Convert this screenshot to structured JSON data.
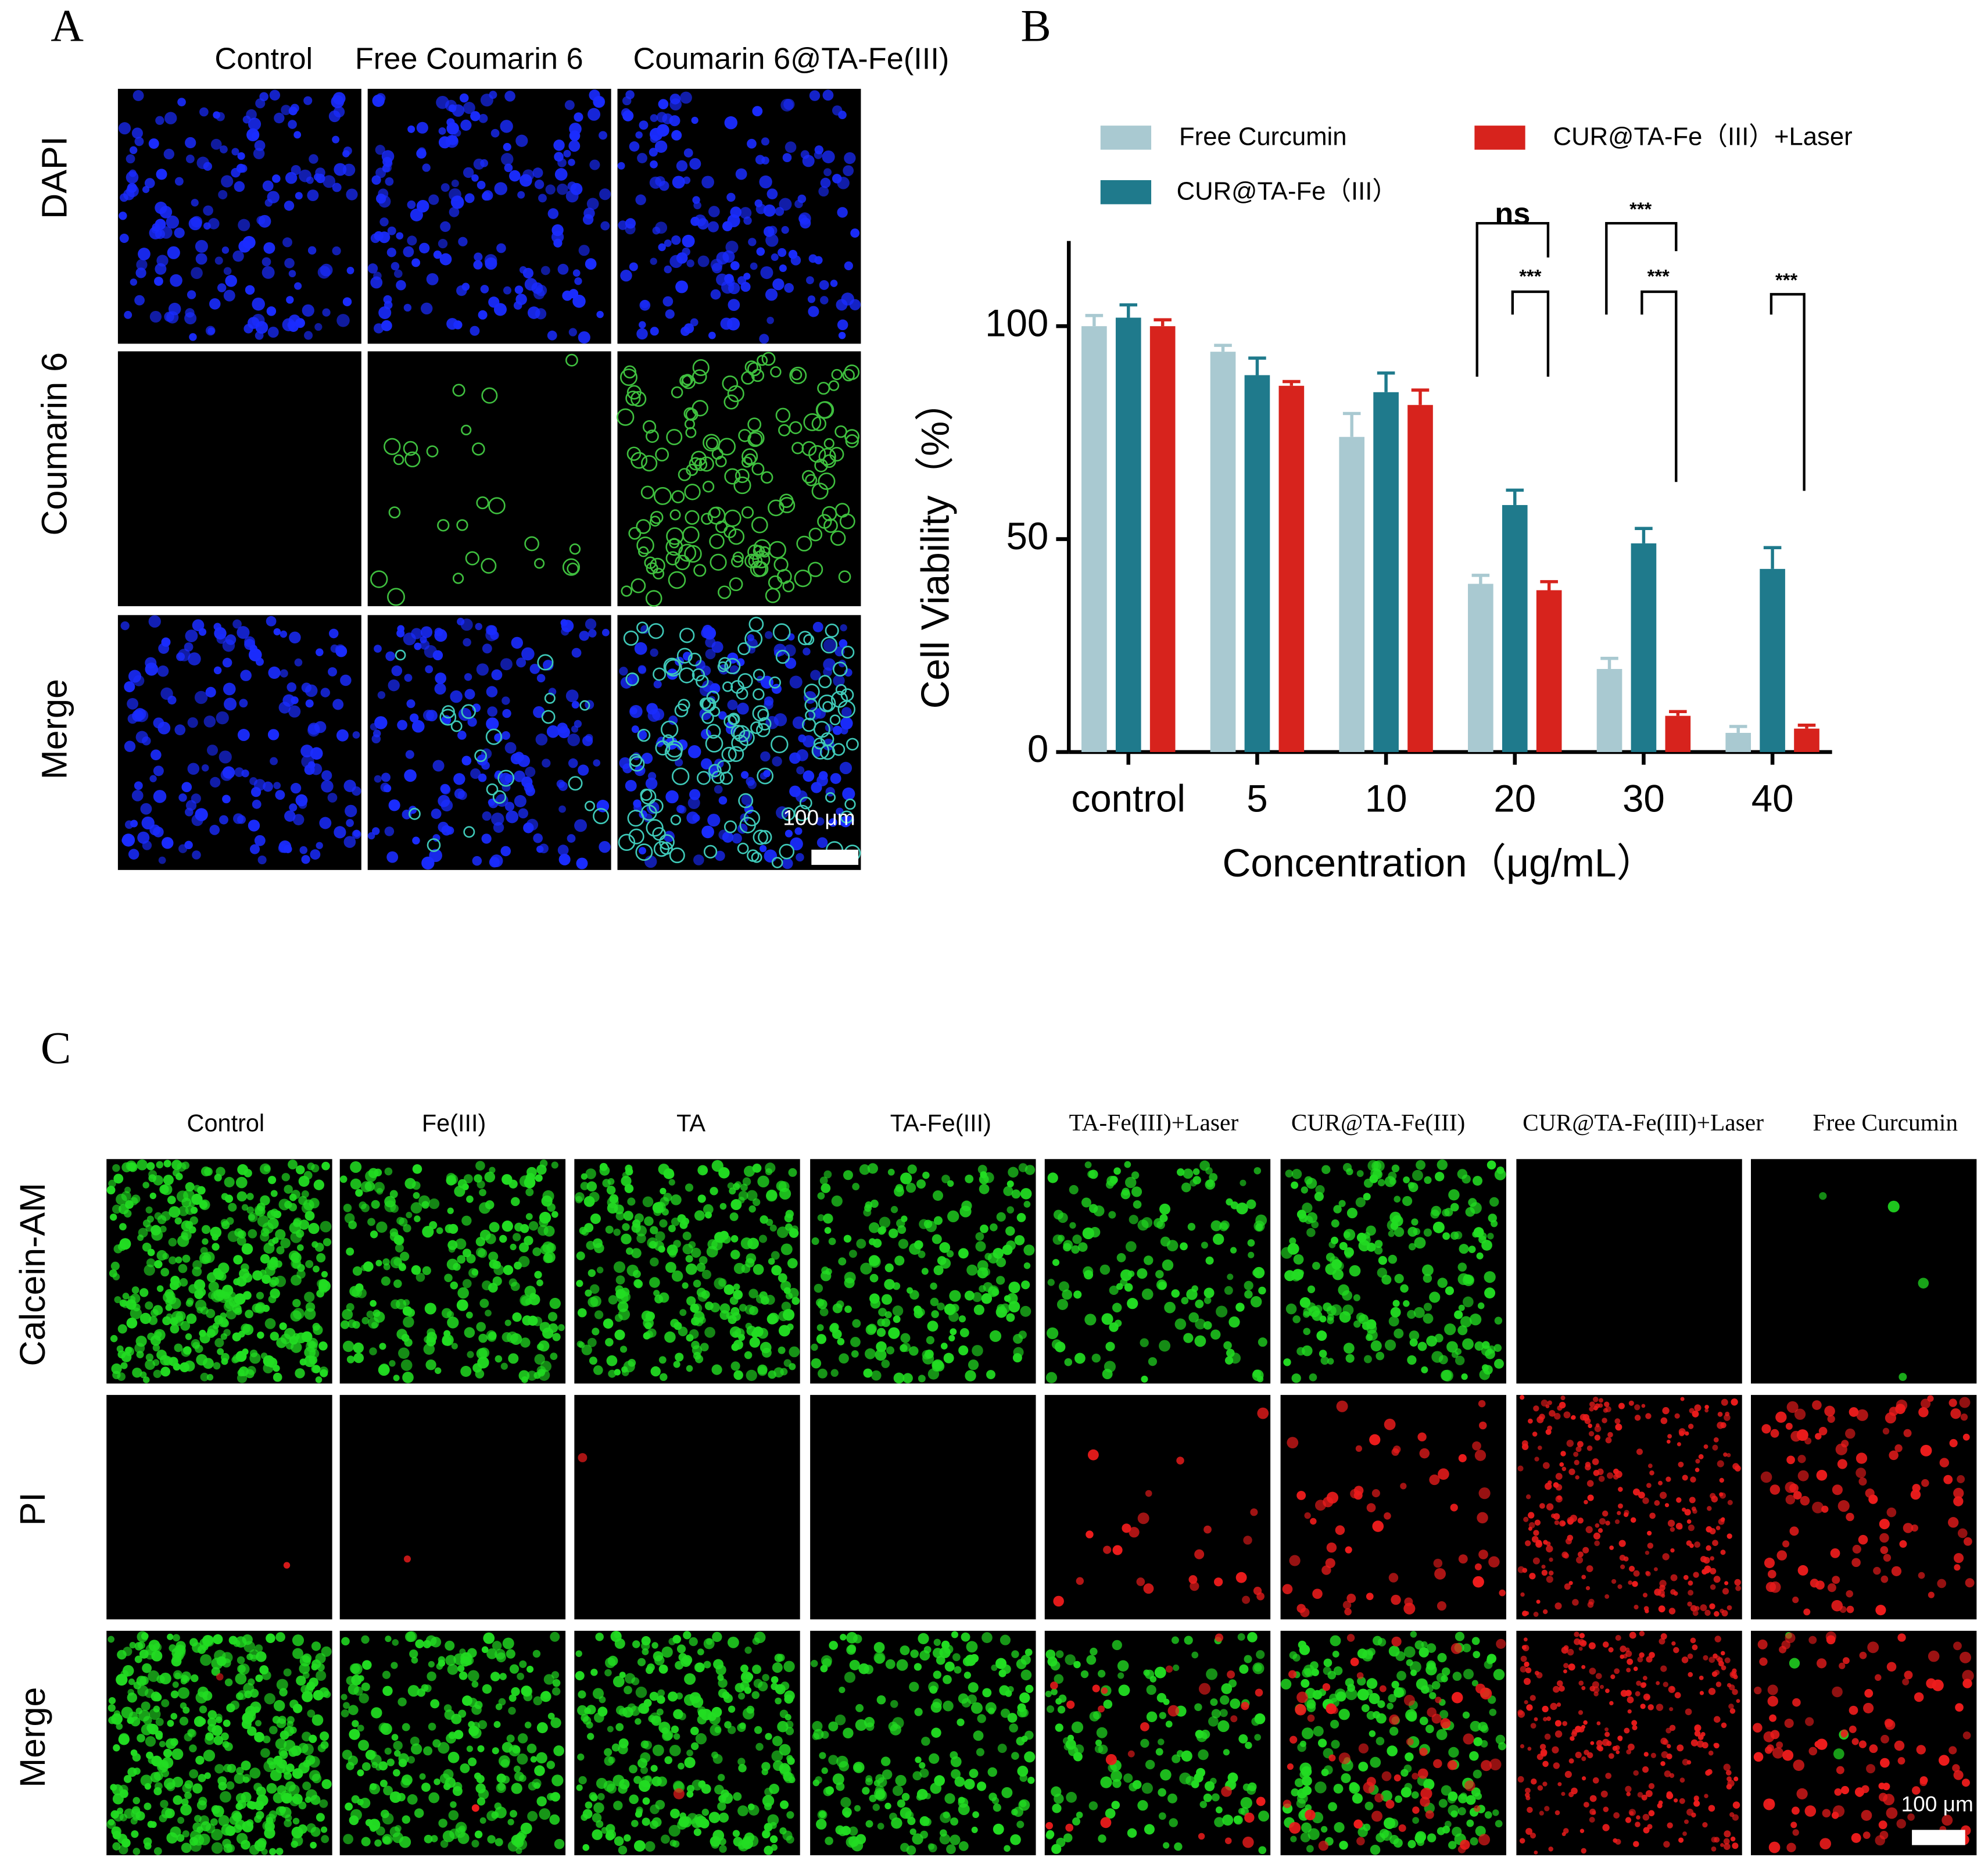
{
  "panel_a": {
    "letter": "A",
    "columns": [
      "Control",
      "Free Coumarin 6",
      "Coumarin 6@TA-Fe(III)"
    ],
    "rows": [
      "DAPI",
      "Coumarin 6",
      "Merge"
    ],
    "scale_bar": "100 μm"
  },
  "chart_data": {
    "type": "bar",
    "letter": "B",
    "categories": [
      "control",
      "5",
      "10",
      "20",
      "30",
      "40"
    ],
    "series": [
      {
        "name": "Free Curcumin",
        "color": "#a9c9d1",
        "values": [
          100,
          94,
          74,
          39.5,
          19.5,
          4.5
        ],
        "errors": [
          2.5,
          1.5,
          5.5,
          2,
          2.5,
          1.5
        ]
      },
      {
        "name": "CUR@TA-Fe（III）",
        "color": "#1f7a8c",
        "values": [
          102,
          88.5,
          84.5,
          58,
          49,
          43
        ],
        "errors": [
          3,
          4,
          4.5,
          3.5,
          3.5,
          5
        ]
      },
      {
        "name": "CUR@TA-Fe（III）+Laser",
        "color": "#d7231d",
        "values": [
          100,
          86,
          81.5,
          38,
          8.5,
          5.5
        ],
        "errors": [
          1.5,
          1,
          3.5,
          2,
          1,
          0.8
        ]
      }
    ],
    "ylim": [
      0,
      120
    ],
    "yticks": [
      0,
      50,
      100
    ],
    "y_label": "Cell Viability（%）",
    "x_label": "Concentration（μg/mL）",
    "annotations": [
      "ns",
      "***",
      "***",
      "***",
      "***"
    ]
  },
  "panel_c": {
    "letter": "C",
    "columns": [
      "Control",
      "Fe(III)",
      "TA",
      "TA-Fe(III)",
      "TA-Fe(III)+Laser",
      "CUR@TA-Fe(III)",
      "CUR@TA-Fe(III)+Laser",
      "Free Curcumin"
    ],
    "rows": [
      "Calcein-AM",
      "PI",
      "Merge"
    ],
    "scale_bar": "100 μm"
  }
}
